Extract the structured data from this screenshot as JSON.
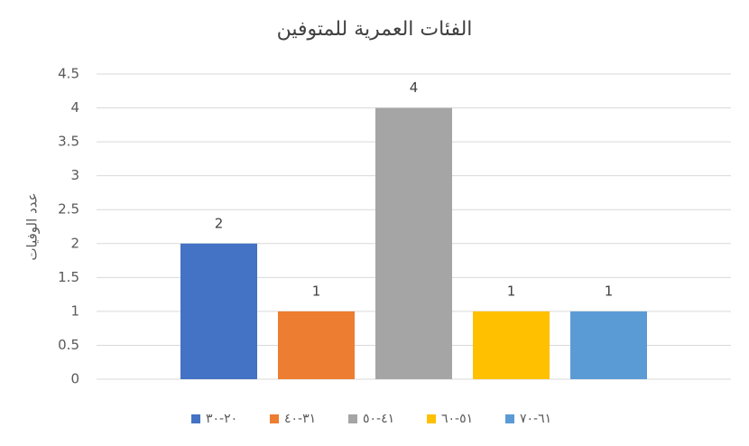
{
  "chart_data": {
    "type": "bar",
    "title": "الفئات العمرية للمتوفين",
    "y_label": "عدد الوفيات",
    "categories": [
      null
    ],
    "series": [
      {
        "name": "٢٠-٣٠",
        "color": "#4472c4",
        "values": [
          2
        ]
      },
      {
        "name": "٣١-٤٠",
        "color": "#ed7d31",
        "values": [
          1
        ]
      },
      {
        "name": "٤١-٥٠",
        "color": "#a5a5a5",
        "values": [
          4
        ]
      },
      {
        "name": "٥١-٦٠",
        "color": "#ffc000",
        "values": [
          1
        ]
      },
      {
        "name": "٦١-٧٠",
        "color": "#5b9bd5",
        "values": [
          1
        ]
      }
    ],
    "ylim": [
      0,
      4.5
    ],
    "yticks": [
      0,
      0.5,
      1,
      1.5,
      2,
      2.5,
      3,
      3.5,
      4,
      4.5
    ],
    "grid": true,
    "legend": "bottom"
  }
}
